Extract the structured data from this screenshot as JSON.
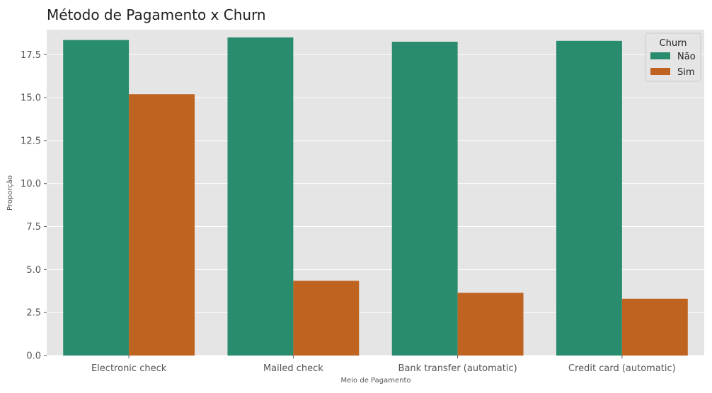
{
  "chart_data": {
    "type": "bar",
    "title": "Método de Pagamento x Churn",
    "xlabel": "Meio de Pagamento",
    "ylabel": "Proporção",
    "categories": [
      "Electronic check",
      "Mailed check",
      "Bank transfer (automatic)",
      "Credit card (automatic)"
    ],
    "series": [
      {
        "name": "Não",
        "color": "#2a8c6e",
        "values": [
          18.35,
          18.5,
          18.25,
          18.3
        ]
      },
      {
        "name": "Sim",
        "color": "#bf6320",
        "values": [
          15.2,
          4.35,
          3.65,
          3.3
        ]
      }
    ],
    "ylim": [
      0,
      18.95
    ],
    "yticks": [
      "0.0",
      "2.5",
      "5.0",
      "7.5",
      "10.0",
      "12.5",
      "15.0",
      "17.5"
    ],
    "ytick_values": [
      0,
      2.5,
      5,
      7.5,
      10,
      12.5,
      15,
      17.5
    ],
    "legend": {
      "title": "Churn",
      "position": "top-right"
    },
    "grid": true,
    "style": {
      "panel_bg": "#e5e5e5",
      "grid_color": "#ffffff",
      "text_color": "#555555",
      "title_color": "#222222"
    }
  }
}
